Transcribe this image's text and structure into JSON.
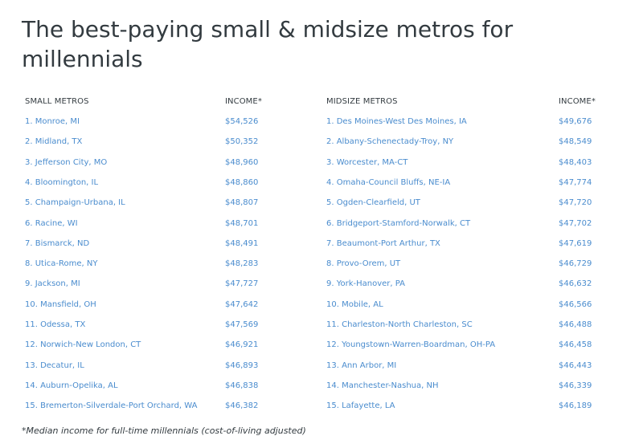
{
  "title": "The best-paying small & midsize metros for millennials",
  "headers": {
    "small": "SMALL METROS",
    "small_income": "INCOME*",
    "midsize": "MIDSIZE METROS",
    "midsize_income": "INCOME*"
  },
  "small_metros": [
    {
      "name": "1. Monroe, MI",
      "income": "$54,526"
    },
    {
      "name": "2. Midland, TX",
      "income": "$50,352"
    },
    {
      "name": "3. Jefferson City, MO",
      "income": "$48,960"
    },
    {
      "name": "4. Bloomington, IL",
      "income": "$48,860"
    },
    {
      "name": "5. Champaign-Urbana, IL",
      "income": "$48,807"
    },
    {
      "name": "6. Racine, WI",
      "income": "$48,701"
    },
    {
      "name": "7. Bismarck, ND",
      "income": "$48,491"
    },
    {
      "name": "8. Utica-Rome, NY",
      "income": "$48,283"
    },
    {
      "name": "9. Jackson, MI",
      "income": "$47,727"
    },
    {
      "name": "10. Mansfield, OH",
      "income": "$47,642"
    },
    {
      "name": "11. Odessa, TX",
      "income": "$47,569"
    },
    {
      "name": "12. Norwich-New London, CT",
      "income": "$46,921"
    },
    {
      "name": "13. Decatur, IL",
      "income": "$46,893"
    },
    {
      "name": "14. Auburn-Opelika, AL",
      "income": "$46,838"
    },
    {
      "name": "15. Bremerton-Silverdale-Port Orchard, WA",
      "income": "$46,382"
    }
  ],
  "midsize_metros": [
    {
      "name": "1. Des Moines-West Des Moines, IA",
      "income": "$49,676"
    },
    {
      "name": "2. Albany-Schenectady-Troy, NY",
      "income": "$48,549"
    },
    {
      "name": "3. Worcester, MA-CT",
      "income": "$48,403"
    },
    {
      "name": "4. Omaha-Council Bluffs, NE-IA",
      "income": "$47,774"
    },
    {
      "name": "5. Ogden-Clearfield, UT",
      "income": "$47,720"
    },
    {
      "name": "6. Bridgeport-Stamford-Norwalk, CT",
      "income": "$47,702"
    },
    {
      "name": "7. Beaumont-Port Arthur, TX",
      "income": "$47,619"
    },
    {
      "name": "8. Provo-Orem, UT",
      "income": "$46,729"
    },
    {
      "name": "9. York-Hanover, PA",
      "income": "$46,632"
    },
    {
      "name": "10. Mobile, AL",
      "income": "$46,566"
    },
    {
      "name": "11. Charleston-North Charleston, SC",
      "income": "$46,488"
    },
    {
      "name": "12. Youngstown-Warren-Boardman, OH-PA",
      "income": "$46,458"
    },
    {
      "name": "13. Ann Arbor, MI",
      "income": "$46,443"
    },
    {
      "name": "14. Manchester-Nashua, NH",
      "income": "$46,339"
    },
    {
      "name": "15. Lafayette, LA",
      "income": "$46,189"
    }
  ],
  "footnote": "*Median income for full-time millennials (cost-of-living adjusted)",
  "colors": {
    "title": "#333b40",
    "link": "#4a8cce"
  }
}
